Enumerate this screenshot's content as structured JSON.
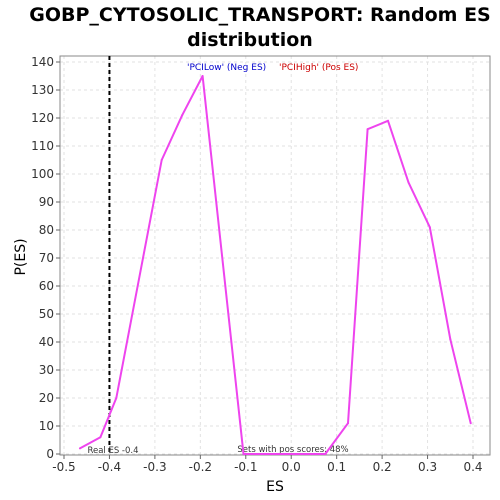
{
  "chart_data": {
    "type": "line",
    "title_line1": "GOBP_CYTOSOLIC_TRANSPORT: Random ES",
    "title_line2": "distribution",
    "xlabel": "ES",
    "ylabel": "P(ES)",
    "xlim": [
      -0.5,
      0.4
    ],
    "ylim": [
      0,
      140
    ],
    "x_ticks": [
      "-0.5",
      "-0.4",
      "-0.3",
      "-0.2",
      "-0.1",
      "0.0",
      "0.1",
      "0.2",
      "0.3",
      "0.4"
    ],
    "x_tick_values": [
      -0.5,
      -0.4,
      -0.3,
      -0.2,
      -0.1,
      0.0,
      0.1,
      0.2,
      0.3,
      0.4
    ],
    "y_ticks": [
      "0",
      "10",
      "20",
      "30",
      "40",
      "50",
      "60",
      "70",
      "80",
      "90",
      "100",
      "110",
      "120",
      "130",
      "140"
    ],
    "y_tick_values": [
      0,
      10,
      20,
      30,
      40,
      50,
      60,
      70,
      80,
      90,
      100,
      110,
      120,
      130,
      140
    ],
    "grid": true,
    "legend": [
      {
        "label": "'PCILow' (Neg ES)",
        "color": "#0000cc"
      },
      {
        "label": "'PCIHigh' (Pos ES)",
        "color": "#cc0000"
      }
    ],
    "series": [
      {
        "color": "#ee44ee",
        "x": [
          -0.465,
          -0.42,
          -0.385,
          -0.285,
          -0.24,
          -0.195,
          -0.105,
          0.075,
          0.125,
          0.168,
          0.213,
          0.258,
          0.305,
          0.35,
          0.395
        ],
        "y": [
          2,
          6,
          20,
          105,
          121,
          135,
          0,
          0,
          11,
          116,
          119,
          97,
          81,
          41,
          11
        ]
      }
    ],
    "real_es": {
      "value": -0.4,
      "label": "Real ES -0.4"
    },
    "annotation": "Sets with pos scores: 48%"
  }
}
